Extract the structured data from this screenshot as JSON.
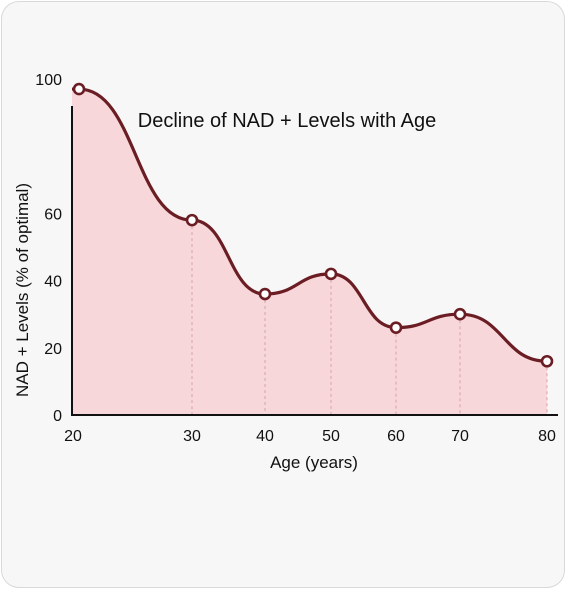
{
  "chart_data": {
    "type": "area",
    "title": "Decline of NAD + Levels with Age",
    "xlabel": "Age (years)",
    "ylabel": "NAD + Levels (% of optimal)",
    "x": [
      20,
      30,
      40,
      50,
      60,
      70,
      80
    ],
    "y": [
      97,
      58,
      36,
      42,
      26,
      30,
      16
    ],
    "x_ticks": [
      "20",
      "30",
      "40",
      "50",
      "60",
      "70",
      "80"
    ],
    "y_ticks": [
      "0",
      "20",
      "40",
      "60",
      "100"
    ],
    "ylim": [
      0,
      110
    ],
    "colors": {
      "line": "#6b1d24",
      "fill": "#f8d7da",
      "marker_fill": "#ffffff",
      "guide": "#d9a3a8"
    },
    "grid": false,
    "legend": "none"
  }
}
